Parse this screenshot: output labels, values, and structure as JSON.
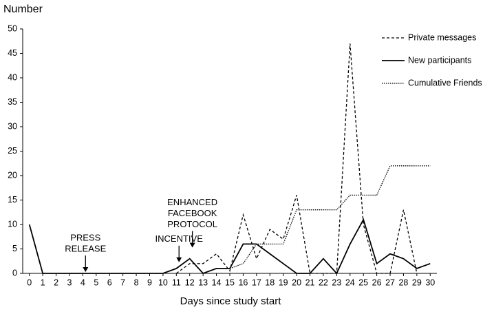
{
  "chart_data": {
    "type": "line",
    "title": "Number",
    "xlabel": "Days since study start",
    "x": [
      0,
      1,
      2,
      3,
      4,
      5,
      6,
      7,
      8,
      9,
      10,
      11,
      12,
      13,
      14,
      15,
      16,
      17,
      18,
      19,
      20,
      21,
      22,
      23,
      24,
      25,
      26,
      27,
      28,
      29,
      30
    ],
    "xlim": [
      -0.5,
      30.5
    ],
    "xticks": [
      0,
      1,
      2,
      3,
      4,
      5,
      6,
      7,
      8,
      9,
      10,
      11,
      12,
      13,
      14,
      15,
      16,
      17,
      18,
      19,
      20,
      21,
      22,
      23,
      24,
      25,
      26,
      27,
      28,
      29,
      30
    ],
    "ylim": [
      0,
      50
    ],
    "yticks": [
      0,
      5,
      10,
      15,
      20,
      25,
      30,
      35,
      40,
      45,
      50
    ],
    "series": [
      {
        "name": "Private messages",
        "color": "#000000",
        "style": "dashed",
        "values": [
          null,
          null,
          null,
          null,
          null,
          null,
          null,
          null,
          null,
          null,
          null,
          0,
          2,
          2,
          4,
          0.5,
          12,
          3,
          9,
          7,
          16,
          0,
          0,
          0,
          47,
          10,
          0,
          0,
          13,
          0,
          null
        ]
      },
      {
        "name": "New participants",
        "color": "#000000",
        "style": "solid",
        "values": [
          10,
          0,
          0,
          0,
          0,
          0,
          0,
          0,
          0,
          0,
          0,
          1,
          3,
          0,
          1,
          1,
          6,
          6,
          4,
          2,
          0,
          0,
          3,
          0,
          6,
          11,
          2,
          4,
          3,
          1,
          2
        ]
      },
      {
        "name": "Cumulative Friends",
        "color": "#000000",
        "style": "dotted",
        "values": [
          null,
          null,
          null,
          null,
          null,
          null,
          null,
          null,
          null,
          null,
          null,
          null,
          null,
          null,
          null,
          1,
          2,
          6,
          6,
          6,
          13,
          13,
          13,
          13,
          16,
          16,
          16,
          22,
          22,
          22,
          22
        ]
      }
    ],
    "annotations": [
      {
        "text": [
          "PRESS",
          "RELEASE"
        ],
        "x": 4.2,
        "y": 0
      },
      {
        "text": [
          "INCENTIVE"
        ],
        "x": 11.2,
        "y": 2
      },
      {
        "text": [
          "ENHANCED",
          "FACEBOOK",
          "PROTOCOL"
        ],
        "x": 12.2,
        "y": 5
      }
    ],
    "legend": "upper right"
  }
}
